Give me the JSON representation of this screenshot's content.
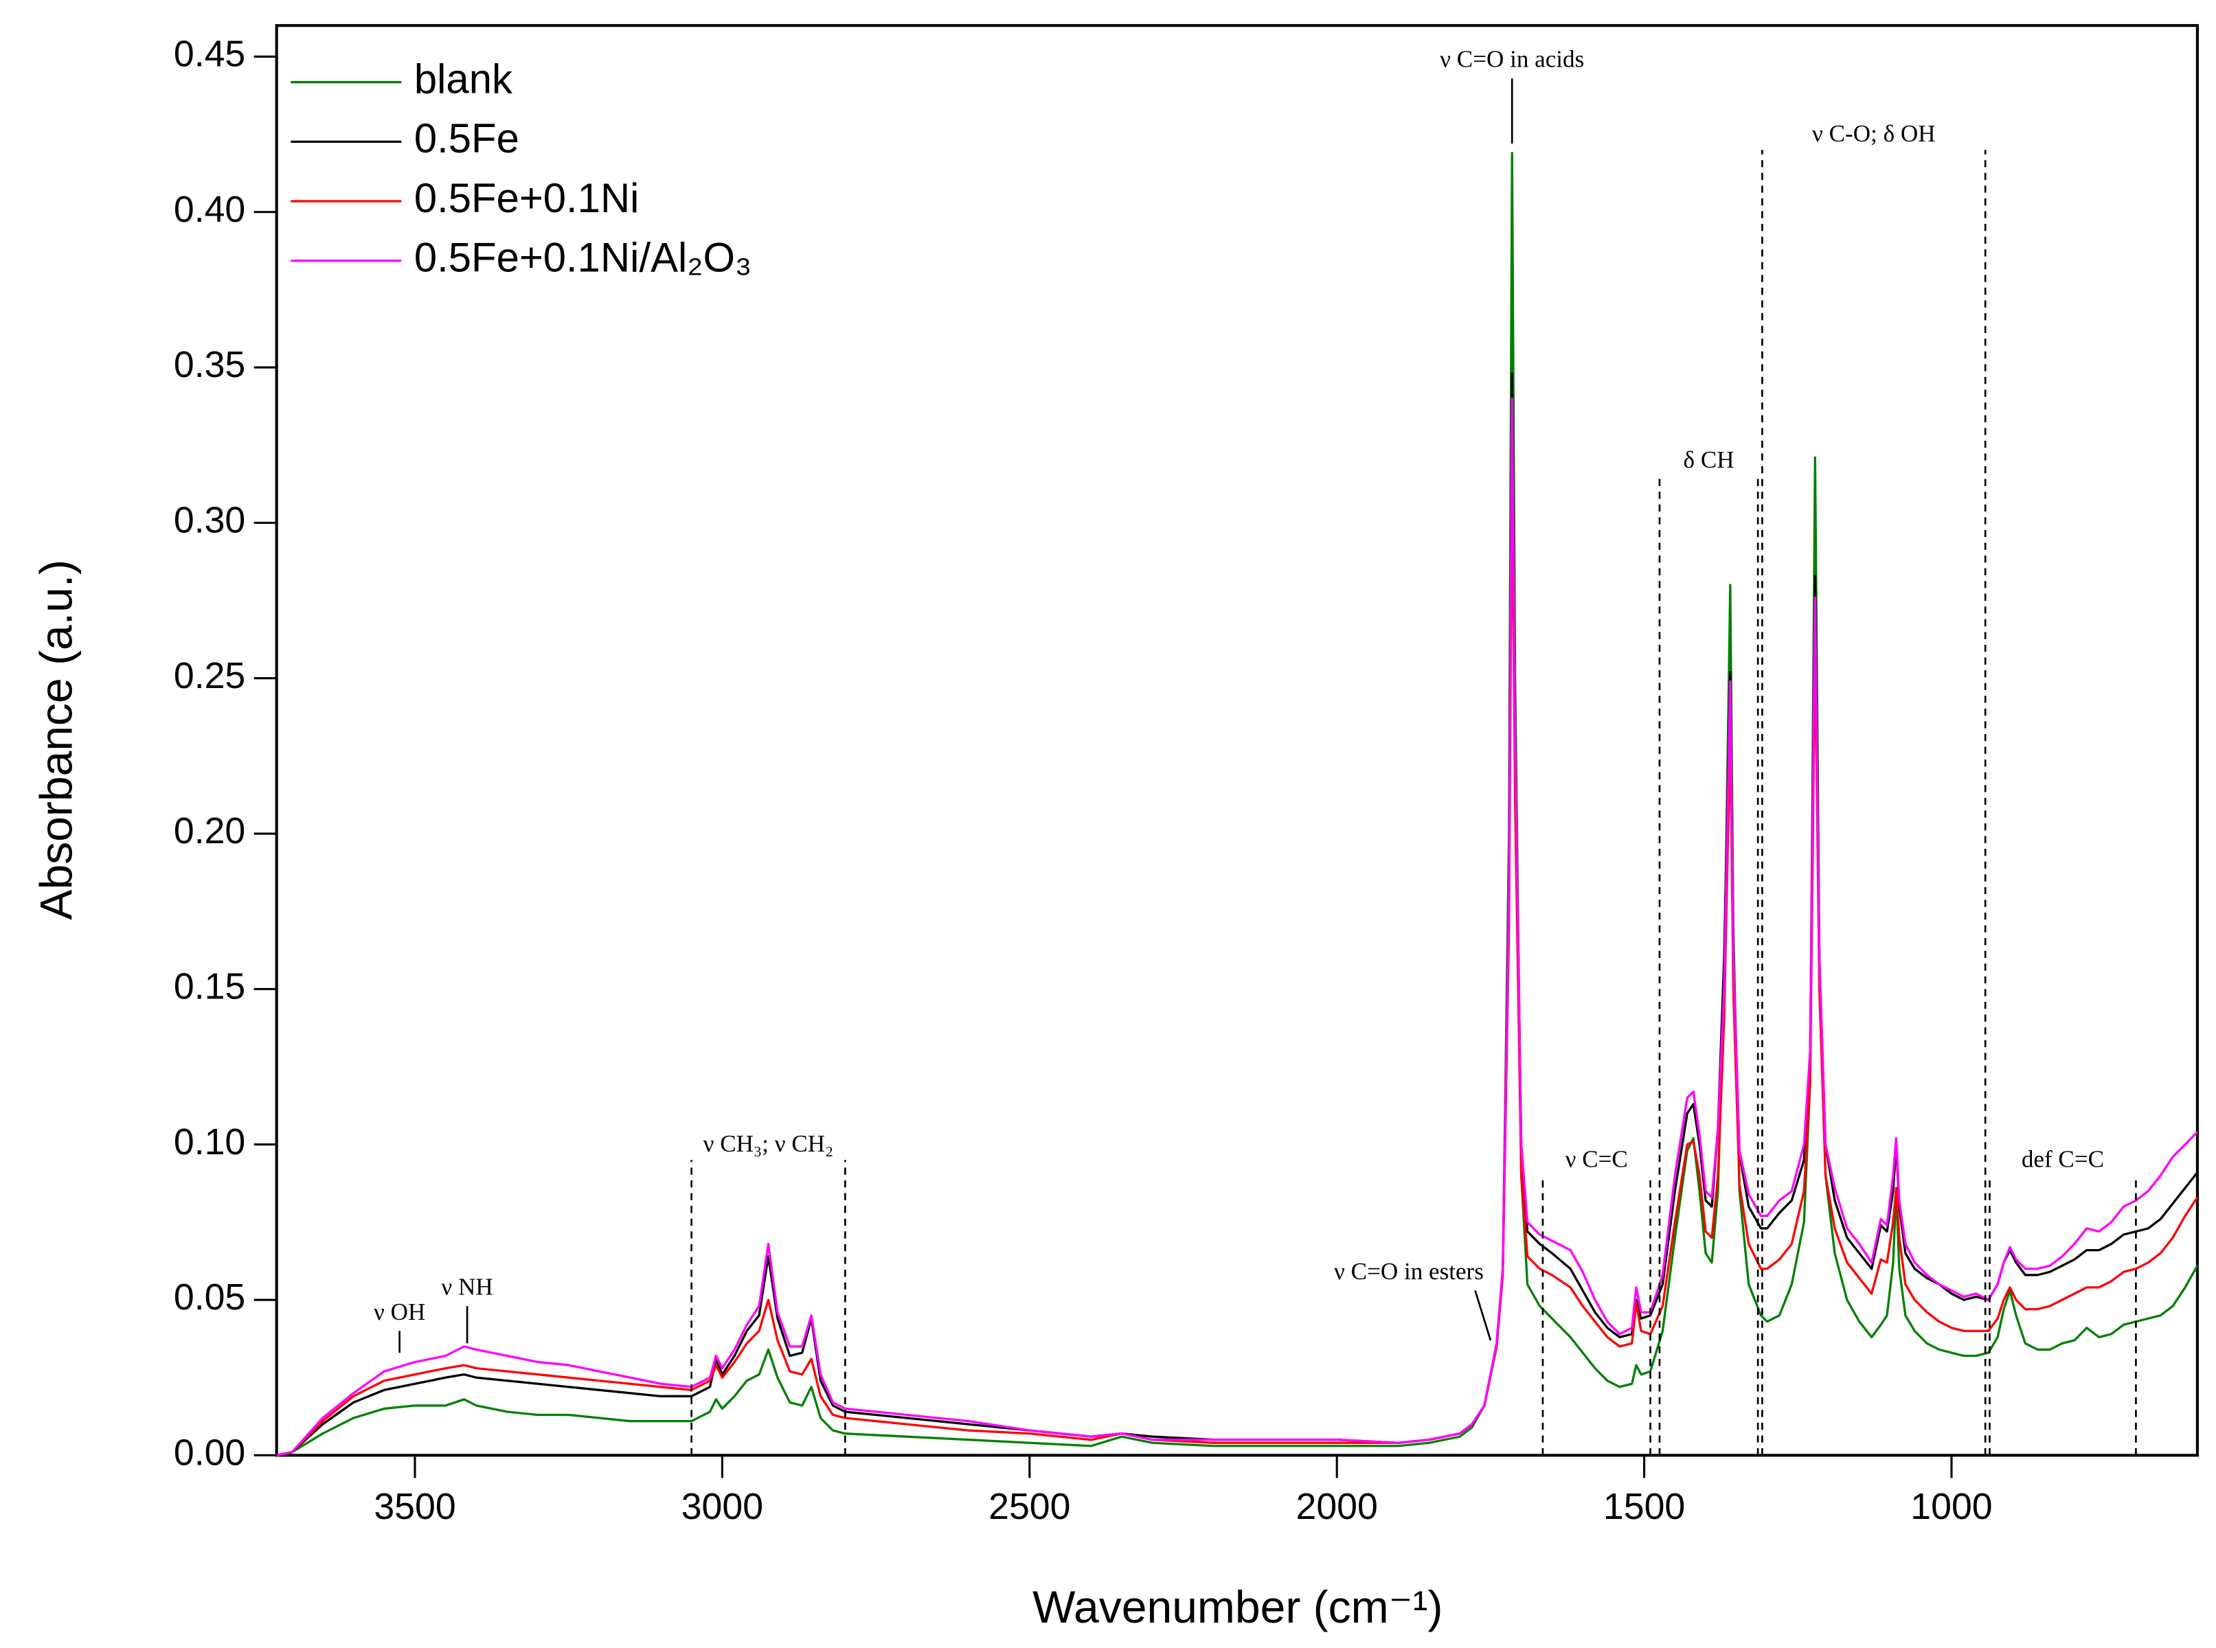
{
  "chart_data": {
    "type": "line",
    "x_label": "Wavenumber (cm⁻¹)",
    "y_label": "Absorbance (a.u.)",
    "xlim": [
      3725,
      600
    ],
    "ylim": [
      0,
      0.46
    ],
    "xticks": [
      3500,
      3000,
      2500,
      2000,
      1500,
      1000
    ],
    "yticks": [
      {
        "value": 0,
        "label": "0.00"
      },
      {
        "value": 0.05,
        "label": "0.05"
      },
      {
        "value": 0.1,
        "label": "0.10"
      },
      {
        "value": 0.15,
        "label": "0.15"
      },
      {
        "value": 0.2,
        "label": "0.20"
      },
      {
        "value": 0.25,
        "label": "0.25"
      },
      {
        "value": 0.3,
        "label": "0.30"
      },
      {
        "value": 0.35,
        "label": "0.35"
      },
      {
        "value": 0.4,
        "label": "0.40"
      },
      {
        "value": 0.45,
        "label": "0.45"
      }
    ],
    "legend": "upper-left",
    "x": [
      3725,
      3700,
      3650,
      3600,
      3550,
      3500,
      3450,
      3420,
      3400,
      3350,
      3300,
      3250,
      3200,
      3150,
      3100,
      3050,
      3020,
      3010,
      3000,
      2980,
      2960,
      2940,
      2925,
      2910,
      2890,
      2870,
      2855,
      2840,
      2820,
      2800,
      2700,
      2600,
      2500,
      2400,
      2350,
      2300,
      2200,
      2000,
      1900,
      1850,
      1800,
      1780,
      1760,
      1740,
      1730,
      1720,
      1715,
      1710,
      1700,
      1690,
      1670,
      1650,
      1620,
      1600,
      1580,
      1560,
      1540,
      1520,
      1513,
      1505,
      1490,
      1470,
      1450,
      1430,
      1420,
      1410,
      1400,
      1390,
      1380,
      1370,
      1360,
      1355,
      1345,
      1330,
      1310,
      1300,
      1280,
      1260,
      1240,
      1230,
      1222,
      1215,
      1205,
      1190,
      1170,
      1150,
      1130,
      1115,
      1105,
      1095,
      1090,
      1085,
      1075,
      1060,
      1040,
      1020,
      1000,
      980,
      960,
      940,
      925,
      915,
      905,
      895,
      880,
      860,
      840,
      820,
      800,
      780,
      760,
      740,
      720,
      700,
      680,
      660,
      640,
      620,
      600
    ],
    "series": [
      {
        "name": "blank",
        "color": "#008000",
        "values": [
          0,
          0.001,
          0.007,
          0.012,
          0.015,
          0.016,
          0.016,
          0.018,
          0.016,
          0.014,
          0.013,
          0.013,
          0.012,
          0.011,
          0.011,
          0.011,
          0.014,
          0.018,
          0.015,
          0.019,
          0.024,
          0.026,
          0.034,
          0.025,
          0.017,
          0.016,
          0.022,
          0.012,
          0.008,
          0.007,
          0.006,
          0.005,
          0.004,
          0.003,
          0.006,
          0.004,
          0.003,
          0.003,
          0.003,
          0.004,
          0.006,
          0.009,
          0.016,
          0.035,
          0.06,
          0.2,
          0.419,
          0.25,
          0.09,
          0.055,
          0.048,
          0.044,
          0.038,
          0.033,
          0.028,
          0.024,
          0.022,
          0.023,
          0.029,
          0.026,
          0.027,
          0.04,
          0.07,
          0.098,
          0.102,
          0.085,
          0.065,
          0.062,
          0.085,
          0.15,
          0.28,
          0.17,
          0.085,
          0.055,
          0.045,
          0.043,
          0.045,
          0.055,
          0.075,
          0.12,
          0.321,
          0.16,
          0.09,
          0.065,
          0.05,
          0.043,
          0.038,
          0.042,
          0.045,
          0.062,
          0.085,
          0.06,
          0.045,
          0.04,
          0.036,
          0.034,
          0.033,
          0.032,
          0.032,
          0.033,
          0.038,
          0.047,
          0.053,
          0.045,
          0.036,
          0.034,
          0.034,
          0.036,
          0.037,
          0.041,
          0.038,
          0.039,
          0.042,
          0.043,
          0.044,
          0.045,
          0.048,
          0.054,
          0.061
        ]
      },
      {
        "name": "0.5Fe",
        "color": "#000000",
        "values": [
          0,
          0.001,
          0.01,
          0.017,
          0.021,
          0.023,
          0.025,
          0.026,
          0.025,
          0.024,
          0.023,
          0.022,
          0.021,
          0.02,
          0.019,
          0.019,
          0.022,
          0.031,
          0.026,
          0.032,
          0.04,
          0.045,
          0.064,
          0.044,
          0.032,
          0.033,
          0.044,
          0.024,
          0.016,
          0.014,
          0.012,
          0.01,
          0.008,
          0.006,
          0.007,
          0.006,
          0.005,
          0.005,
          0.004,
          0.005,
          0.007,
          0.01,
          0.016,
          0.036,
          0.06,
          0.18,
          0.348,
          0.23,
          0.1,
          0.072,
          0.068,
          0.065,
          0.06,
          0.053,
          0.046,
          0.041,
          0.038,
          0.039,
          0.05,
          0.044,
          0.045,
          0.055,
          0.085,
          0.11,
          0.113,
          0.1,
          0.082,
          0.08,
          0.105,
          0.16,
          0.252,
          0.16,
          0.097,
          0.08,
          0.073,
          0.073,
          0.078,
          0.082,
          0.095,
          0.13,
          0.283,
          0.16,
          0.1,
          0.082,
          0.07,
          0.065,
          0.06,
          0.074,
          0.072,
          0.085,
          0.1,
          0.08,
          0.065,
          0.06,
          0.057,
          0.055,
          0.052,
          0.05,
          0.051,
          0.05,
          0.055,
          0.062,
          0.066,
          0.062,
          0.058,
          0.058,
          0.059,
          0.061,
          0.063,
          0.066,
          0.066,
          0.068,
          0.071,
          0.072,
          0.073,
          0.076,
          0.081,
          0.086,
          0.091
        ]
      },
      {
        "name": "0.5Fe+0.1Ni",
        "color": "#ff0000",
        "values": [
          0,
          0.001,
          0.011,
          0.019,
          0.024,
          0.026,
          0.028,
          0.029,
          0.028,
          0.027,
          0.026,
          0.025,
          0.024,
          0.023,
          0.022,
          0.021,
          0.024,
          0.029,
          0.025,
          0.03,
          0.036,
          0.04,
          0.05,
          0.037,
          0.027,
          0.026,
          0.031,
          0.019,
          0.013,
          0.012,
          0.01,
          0.008,
          0.007,
          0.005,
          0.007,
          0.005,
          0.004,
          0.004,
          0.004,
          0.005,
          0.007,
          0.01,
          0.016,
          0.035,
          0.058,
          0.17,
          0.317,
          0.21,
          0.09,
          0.064,
          0.06,
          0.058,
          0.054,
          0.048,
          0.043,
          0.038,
          0.035,
          0.036,
          0.049,
          0.04,
          0.039,
          0.048,
          0.075,
          0.1,
          0.101,
          0.09,
          0.072,
          0.07,
          0.09,
          0.14,
          0.233,
          0.15,
          0.087,
          0.068,
          0.06,
          0.06,
          0.063,
          0.068,
          0.085,
          0.12,
          0.262,
          0.15,
          0.09,
          0.073,
          0.062,
          0.057,
          0.052,
          0.063,
          0.062,
          0.075,
          0.086,
          0.07,
          0.055,
          0.05,
          0.046,
          0.043,
          0.041,
          0.04,
          0.04,
          0.04,
          0.044,
          0.05,
          0.054,
          0.05,
          0.047,
          0.047,
          0.048,
          0.05,
          0.052,
          0.054,
          0.054,
          0.056,
          0.059,
          0.06,
          0.062,
          0.065,
          0.07,
          0.077,
          0.083
        ]
      },
      {
        "name": "0.5Fe+0.1Ni/Al₂O₃",
        "color": "#ff00ff",
        "values": [
          0,
          0.001,
          0.012,
          0.02,
          0.027,
          0.03,
          0.032,
          0.035,
          0.034,
          0.032,
          0.03,
          0.029,
          0.027,
          0.025,
          0.023,
          0.022,
          0.025,
          0.032,
          0.028,
          0.034,
          0.042,
          0.048,
          0.068,
          0.046,
          0.035,
          0.035,
          0.045,
          0.026,
          0.017,
          0.015,
          0.013,
          0.011,
          0.008,
          0.006,
          0.007,
          0.005,
          0.005,
          0.005,
          0.004,
          0.005,
          0.007,
          0.01,
          0.016,
          0.036,
          0.06,
          0.18,
          0.34,
          0.23,
          0.1,
          0.075,
          0.071,
          0.069,
          0.066,
          0.059,
          0.05,
          0.043,
          0.039,
          0.041,
          0.054,
          0.046,
          0.046,
          0.058,
          0.09,
          0.115,
          0.117,
          0.103,
          0.085,
          0.083,
          0.105,
          0.15,
          0.249,
          0.16,
          0.098,
          0.084,
          0.077,
          0.077,
          0.082,
          0.085,
          0.1,
          0.13,
          0.276,
          0.16,
          0.1,
          0.086,
          0.073,
          0.068,
          0.062,
          0.076,
          0.074,
          0.09,
          0.102,
          0.082,
          0.068,
          0.062,
          0.058,
          0.055,
          0.053,
          0.051,
          0.052,
          0.05,
          0.055,
          0.062,
          0.067,
          0.063,
          0.06,
          0.06,
          0.061,
          0.064,
          0.068,
          0.073,
          0.072,
          0.075,
          0.08,
          0.082,
          0.085,
          0.09,
          0.096,
          0.1,
          0.104
        ]
      }
    ],
    "annotations": [
      {
        "text": "ν  OH",
        "style": "solid",
        "x": [
          3525
        ],
        "span": [
          0.033,
          0.04
        ]
      },
      {
        "text": "ν NH",
        "style": "solid",
        "x": [
          3415
        ],
        "span": [
          0.036,
          0.048
        ]
      },
      {
        "text": "ν CH₃; ν CH₂",
        "style": "dashed",
        "x": [
          3050,
          2800
        ],
        "span": [
          0,
          0.095
        ]
      },
      {
        "text": "ν C=O in esters",
        "style": "solid",
        "x": [
          1775,
          1750
        ],
        "span": [
          0.053,
          0.037
        ]
      },
      {
        "text": "ν C=O in acids",
        "style": "solid",
        "x": [
          1715
        ],
        "span": [
          0.422,
          0.443
        ]
      },
      {
        "text": "ν C=C",
        "style": "dashed",
        "x": [
          1665,
          1490
        ],
        "span": [
          0,
          0.09
        ]
      },
      {
        "text": "δ CH",
        "style": "dashed",
        "x": [
          1475,
          1315
        ],
        "span": [
          0,
          0.315
        ]
      },
      {
        "text": "ν C-O; δ OH",
        "style": "dashed",
        "x": [
          1308,
          945
        ],
        "span": [
          0,
          0.42
        ]
      },
      {
        "text": "def C=C",
        "style": "dashed",
        "x": [
          938,
          700
        ],
        "span": [
          0,
          0.09
        ]
      }
    ]
  }
}
